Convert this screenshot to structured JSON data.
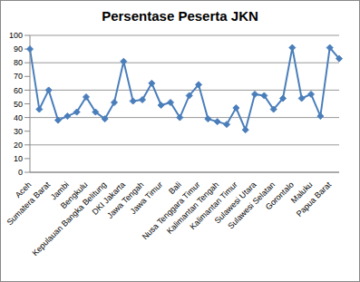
{
  "chart_data": {
    "type": "line",
    "title": "Persentase Peserta JKN",
    "categories": [
      "Aceh",
      null,
      "Sumatera Barat",
      null,
      "Jambi",
      null,
      "Bengkulu",
      null,
      "Kepulauan Bangka Belitung",
      null,
      "DKI Jakarta",
      null,
      "Jawa Tengah",
      null,
      "Jawa Timur",
      null,
      "Bali",
      null,
      "Nusa Tenggara Timur",
      null,
      "Kalimantan Tengah",
      null,
      "Kalimantan Timur",
      null,
      "Sulawesi Utara",
      null,
      "Sulawesi Selatan",
      null,
      "Gorontalo",
      null,
      "Maluku",
      null,
      "Papua Barat",
      null
    ],
    "values": [
      90,
      46,
      60,
      38,
      41,
      44,
      55,
      44,
      39,
      51,
      81,
      52,
      53,
      65,
      49,
      51,
      40,
      56,
      64,
      39,
      37,
      35,
      47,
      31,
      57,
      56,
      46,
      54,
      91,
      54,
      57,
      41,
      91,
      83
    ],
    "color": "#4a7ebb",
    "marker": "diamond",
    "ylim": [
      0,
      100
    ],
    "yticks": [
      0,
      10,
      20,
      30,
      40,
      50,
      60,
      70,
      80,
      90,
      100
    ],
    "grid": true
  }
}
